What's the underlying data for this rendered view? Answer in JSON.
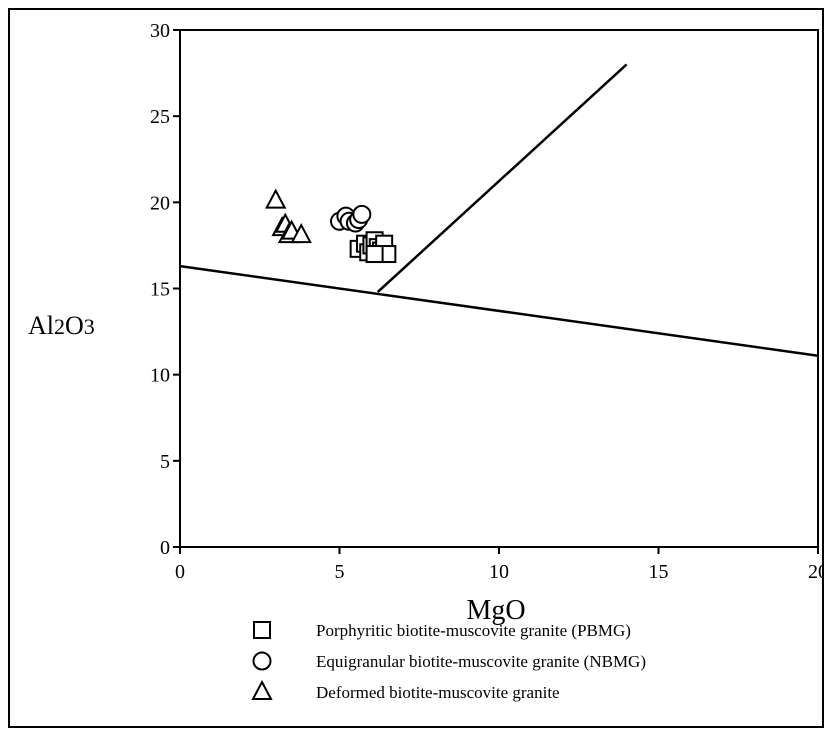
{
  "chart_data": {
    "type": "scatter",
    "xlabel": "MgO",
    "ylabel_parts": [
      "Al",
      "2",
      "O",
      "3"
    ],
    "xlim": [
      0,
      20
    ],
    "ylim": [
      0,
      30
    ],
    "xticks": [
      0,
      5,
      10,
      15,
      20
    ],
    "yticks": [
      0,
      5,
      10,
      15,
      20,
      25,
      30
    ],
    "grid": false,
    "legend_position": "bottom",
    "lines": [
      {
        "x": [
          0,
          20
        ],
        "y": [
          16.3,
          11.1
        ]
      },
      {
        "x": [
          6.2,
          14.0
        ],
        "y": [
          14.8,
          28.0
        ]
      }
    ],
    "series": [
      {
        "name": "Porphyritic biotite-muscovite granite (PBMG)",
        "marker": "square",
        "points": [
          [
            5.6,
            17.3
          ],
          [
            5.8,
            17.6
          ],
          [
            5.9,
            17.1
          ],
          [
            6.0,
            17.5
          ],
          [
            6.1,
            17.8
          ],
          [
            6.2,
            17.4
          ],
          [
            6.3,
            17.2
          ],
          [
            6.4,
            17.6
          ],
          [
            6.5,
            17.0
          ],
          [
            6.1,
            17.0
          ]
        ]
      },
      {
        "name": "Equigranular biotite-muscovite granite (NBMG)",
        "marker": "circle",
        "points": [
          [
            5.0,
            18.9
          ],
          [
            5.2,
            19.2
          ],
          [
            5.3,
            18.9
          ],
          [
            5.5,
            18.8
          ],
          [
            5.6,
            19.0
          ],
          [
            5.7,
            19.3
          ]
        ]
      },
      {
        "name": "Deformed biotite-muscovite granite",
        "marker": "triangle",
        "points": [
          [
            3.0,
            20.1
          ],
          [
            3.2,
            18.5
          ],
          [
            3.3,
            18.7
          ],
          [
            3.4,
            18.1
          ],
          [
            3.5,
            18.3
          ],
          [
            3.8,
            18.1
          ]
        ]
      }
    ]
  }
}
